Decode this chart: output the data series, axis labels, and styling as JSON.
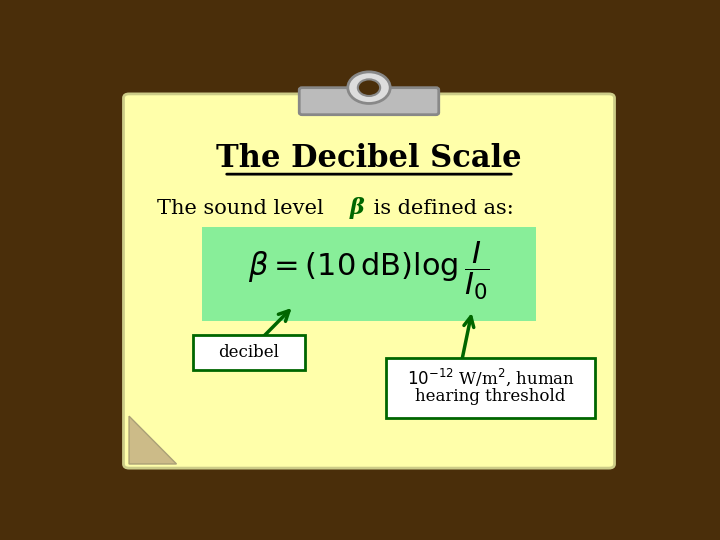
{
  "title": "The Decibel Scale",
  "subtitle_part1": "The sound level ",
  "beta_symbol": "β",
  "subtitle_part2": " is defined as:",
  "label1": "decibel",
  "bg_wood_color": "#4a2e0a",
  "paper_color": "#ffffaa",
  "formula_bg_color": "#88ee99",
  "title_color": "#000000",
  "text_color": "#000000",
  "beta_color": "#006600",
  "arrow_color": "#006600",
  "box_edge_color": "#006600",
  "clip_color": "#bbbbbb",
  "clip_edge_color": "#888888"
}
